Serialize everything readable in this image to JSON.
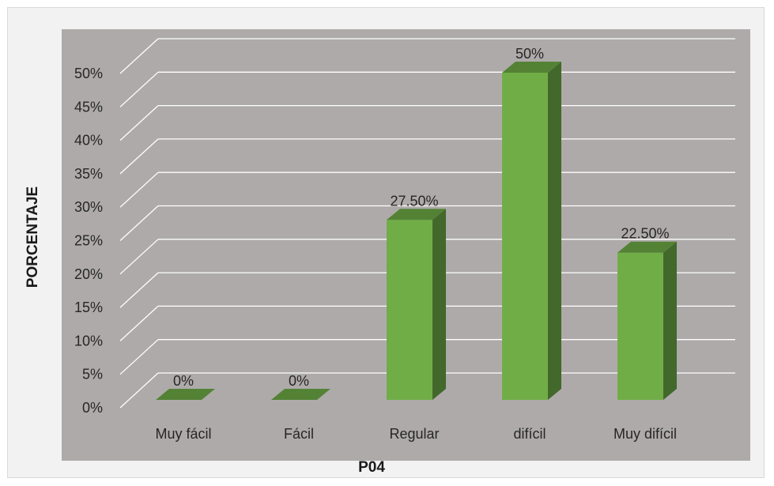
{
  "chart_data": {
    "type": "bar",
    "categories": [
      "Muy fácil",
      "Fácil",
      "Regular",
      "difícil",
      "Muy difícil"
    ],
    "values": [
      0,
      0,
      27.5,
      50,
      22.5
    ],
    "data_labels": [
      "0%",
      "0%",
      "27.50%",
      "50%",
      "22.50%"
    ],
    "yticks": [
      "0%",
      "5%",
      "10%",
      "15%",
      "20%",
      "25%",
      "30%",
      "35%",
      "40%",
      "45%",
      "50%"
    ],
    "ylim": [
      0,
      50
    ],
    "xlabel": "P04",
    "ylabel": "PORCENTAJE",
    "grid": true,
    "style": "3d-column",
    "colors": {
      "bar_front": "#70ad47",
      "bar_top": "#548235",
      "bar_side": "#43682b",
      "plot_background": "#aeaaaa",
      "chart_background": "#f2f2f2",
      "gridline": "#ffffff"
    }
  }
}
